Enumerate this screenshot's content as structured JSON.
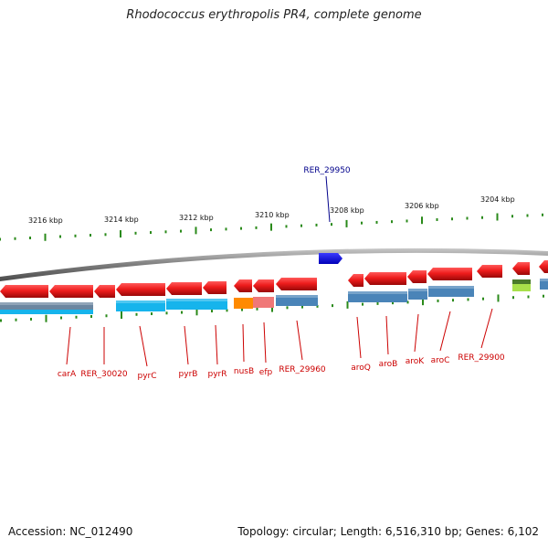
{
  "title": "Rhodococcus erythropolis PR4, complete genome",
  "footer": {
    "accession": "Accession: NC_012490",
    "summary": "Topology: circular; Length: 6,516,310 bp; Genes: 6,102"
  },
  "scale_labels": [
    "3216 kbp",
    "3214 kbp",
    "3212 kbp",
    "3210 kbp",
    "3208 kbp",
    "3206 kbp",
    "3204 kbp"
  ],
  "highlighted_gene": "RER_29950",
  "gene_labels": [
    "carA",
    "RER_30020",
    "pyrC",
    "pyrB",
    "pyrR",
    "nusB",
    "efp",
    "RER_29960",
    "aroQ",
    "aroB",
    "aroK",
    "aroC",
    "RER_29900"
  ],
  "colors": {
    "gene_arrow": "#e8141a",
    "highlight_arrow": "#0a1ee6",
    "tick": "#2a8a1a",
    "label_line": "#cc0000",
    "label_text": "#cc0000",
    "highlight_text": "#00008b",
    "backbone": "#8a8a8a",
    "cds_blue": "#4a84b8",
    "cds_cyan": "#16b4ec"
  }
}
